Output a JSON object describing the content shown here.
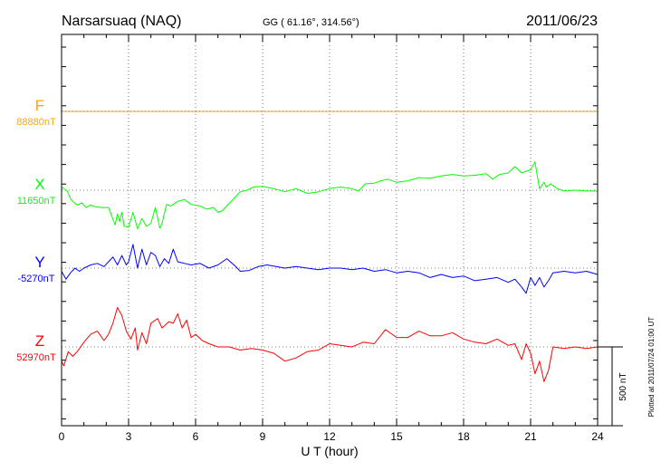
{
  "header": {
    "station": "Narsarsuaq (NAQ)",
    "coords": "GG ( 61.16°, 314.56°)",
    "date": "2011/06/23"
  },
  "footer": {
    "plotted": "Plotted at 2011/07/24 01:00 UT"
  },
  "chart_data": {
    "type": "line",
    "title": "Narsarsuaq (NAQ)",
    "xlabel": "U T (hour)",
    "ylabel": "",
    "xlim": [
      0,
      24
    ],
    "xticks": [
      "0",
      "3",
      "6",
      "9",
      "12",
      "15",
      "18",
      "21",
      "24"
    ],
    "scale_bar": "500 nT",
    "grid": true,
    "series": [
      {
        "name": "F",
        "baseline_label": "88880nT",
        "color": "#ffa500",
        "x": [
          0,
          24
        ],
        "y": [
          0,
          0
        ]
      },
      {
        "name": "X",
        "baseline_label": "11650nT",
        "color": "#00ff00",
        "x": [
          0,
          0.25,
          0.4,
          0.5,
          0.7,
          0.9,
          1.1,
          1.3,
          1.5,
          1.8,
          2.1,
          2.4,
          2.5,
          2.6,
          2.7,
          2.8,
          2.9,
          3.0,
          3.2,
          3.4,
          3.6,
          3.8,
          4.0,
          4.2,
          4.4,
          4.5,
          4.7,
          4.8,
          4.9,
          5.0,
          5.2,
          5.5,
          5.8,
          6.2,
          6.5,
          6.8,
          7.0,
          7.2,
          7.4,
          7.6,
          7.8,
          8.0,
          8.3,
          8.6,
          9.0,
          9.5,
          10.0,
          10.5,
          11.0,
          11.5,
          12.0,
          12.5,
          13.0,
          13.3,
          13.6,
          14.0,
          14.3,
          14.6,
          15.0,
          15.5,
          16.0,
          16.5,
          17.0,
          17.5,
          18.0,
          18.5,
          19.0,
          19.3,
          19.6,
          20.0,
          20.3,
          20.6,
          21.0,
          21.2,
          21.3,
          21.4,
          21.5,
          21.6,
          21.7,
          21.9,
          22.2,
          22.5,
          23.0,
          23.5,
          24.0
        ],
        "y": [
          20,
          -5,
          -55,
          -70,
          -95,
          -80,
          -110,
          -95,
          -105,
          -110,
          -110,
          -220,
          -150,
          -200,
          -140,
          -230,
          -230,
          -235,
          -140,
          -245,
          -180,
          -230,
          -210,
          -110,
          -240,
          -210,
          -90,
          -95,
          -100,
          -90,
          -70,
          -60,
          -90,
          -100,
          -120,
          -110,
          -140,
          -130,
          -100,
          -70,
          -40,
          -10,
          0,
          20,
          25,
          10,
          -10,
          10,
          -20,
          -10,
          10,
          20,
          10,
          -5,
          40,
          45,
          60,
          70,
          50,
          60,
          80,
          75,
          90,
          100,
          90,
          95,
          105,
          70,
          100,
          110,
          150,
          110,
          130,
          180,
          90,
          10,
          30,
          50,
          20,
          40,
          10,
          -5,
          0,
          -5,
          -5
        ]
      },
      {
        "name": "Y",
        "baseline_label": "-5270nT",
        "color": "#0000ff",
        "x": [
          0,
          0.2,
          0.4,
          0.6,
          0.8,
          1.0,
          1.3,
          1.6,
          1.9,
          2.1,
          2.3,
          2.5,
          2.7,
          2.9,
          3.0,
          3.2,
          3.4,
          3.6,
          3.8,
          4.0,
          4.2,
          4.4,
          4.6,
          4.8,
          5.0,
          5.2,
          5.5,
          5.8,
          6.2,
          6.6,
          7.0,
          7.4,
          7.8,
          8.0,
          8.4,
          8.8,
          9.2,
          9.6,
          10.0,
          10.5,
          11.0,
          11.5,
          12.0,
          12.5,
          13.0,
          13.5,
          14.0,
          14.5,
          15.0,
          15.5,
          16.0,
          16.5,
          17.0,
          17.5,
          18.0,
          18.5,
          19.0,
          19.5,
          20.0,
          20.3,
          20.6,
          20.8,
          21.0,
          21.2,
          21.4,
          21.6,
          21.8,
          22.0,
          22.5,
          23.0,
          23.5,
          24.0
        ],
        "y": [
          -20,
          -70,
          -30,
          0,
          -20,
          0,
          20,
          30,
          10,
          40,
          70,
          20,
          80,
          20,
          40,
          150,
          0,
          120,
          20,
          100,
          80,
          10,
          60,
          30,
          120,
          40,
          30,
          20,
          30,
          0,
          20,
          60,
          10,
          -20,
          -15,
          10,
          20,
          10,
          0,
          10,
          0,
          -10,
          0,
          0,
          -10,
          0,
          -20,
          -10,
          -30,
          -20,
          -30,
          -60,
          -40,
          -60,
          -50,
          -80,
          -70,
          -60,
          -90,
          -70,
          -120,
          -160,
          -60,
          -110,
          -60,
          -120,
          -80,
          -30,
          -20,
          -30,
          -20,
          -40
        ]
      },
      {
        "name": "Z",
        "baseline_label": "52970nT",
        "color": "#ff0000",
        "x": [
          0,
          0.1,
          0.3,
          0.5,
          0.7,
          1.0,
          1.3,
          1.6,
          1.9,
          2.1,
          2.3,
          2.5,
          2.7,
          2.9,
          3.1,
          3.3,
          3.4,
          3.6,
          3.8,
          4.0,
          4.3,
          4.5,
          4.8,
          5.0,
          5.2,
          5.4,
          5.6,
          5.8,
          6.0,
          6.3,
          6.6,
          7.0,
          7.5,
          8.0,
          8.5,
          9.0,
          9.5,
          10.0,
          10.5,
          11.0,
          11.5,
          12.0,
          12.5,
          13.0,
          13.5,
          14.0,
          14.5,
          15.0,
          15.5,
          16.0,
          16.5,
          17.0,
          17.5,
          18.0,
          18.5,
          19.0,
          19.5,
          20.0,
          20.3,
          20.6,
          20.8,
          21.0,
          21.2,
          21.4,
          21.6,
          21.8,
          22.0,
          22.5,
          23.0,
          23.5,
          24.0
        ],
        "y": [
          -90,
          -120,
          -30,
          -60,
          -30,
          30,
          80,
          100,
          40,
          80,
          150,
          250,
          200,
          100,
          50,
          120,
          -20,
          90,
          20,
          150,
          180,
          120,
          160,
          150,
          210,
          120,
          170,
          60,
          80,
          40,
          20,
          0,
          0,
          -20,
          -10,
          -20,
          -40,
          -90,
          -70,
          -30,
          -20,
          20,
          10,
          0,
          30,
          20,
          110,
          60,
          60,
          100,
          70,
          70,
          90,
          50,
          30,
          20,
          50,
          10,
          20,
          -80,
          20,
          -40,
          -170,
          -90,
          -220,
          -150,
          0,
          -10,
          0,
          -10,
          0
        ]
      }
    ]
  }
}
